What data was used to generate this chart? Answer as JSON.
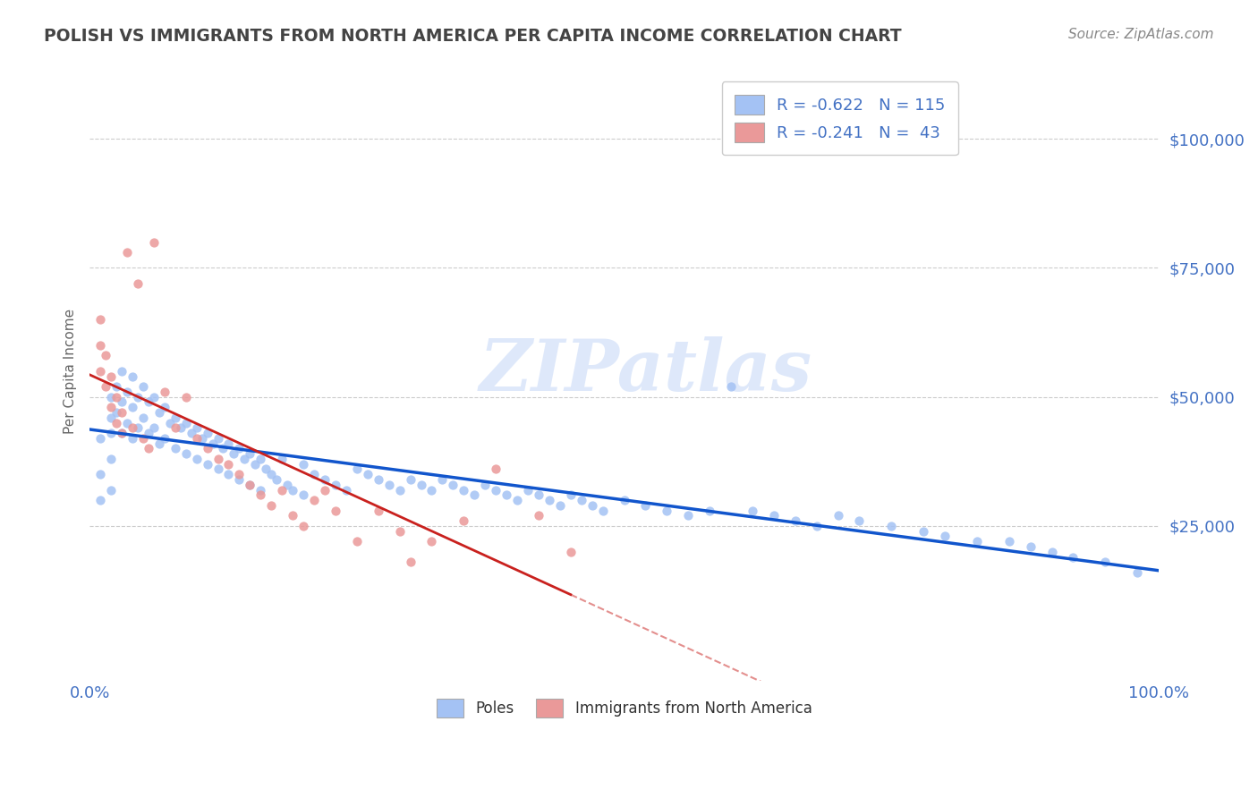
{
  "title": "POLISH VS IMMIGRANTS FROM NORTH AMERICA PER CAPITA INCOME CORRELATION CHART",
  "source": "Source: ZipAtlas.com",
  "ylabel": "Per Capita Income",
  "xlim": [
    0.0,
    1.0
  ],
  "ylim": [
    -5000,
    115000
  ],
  "bg_color": "#ffffff",
  "grid_color": "#cccccc",
  "title_color": "#555555",
  "axis_color": "#4472c4",
  "blue_color": "#a4c2f4",
  "pink_color": "#ea9999",
  "blue_line_color": "#1155cc",
  "pink_line_color": "#c9211e",
  "pink_dash_color": "#c9211e",
  "watermark_color": "#c9daf8",
  "blue_scatter_x": [
    0.01,
    0.01,
    0.01,
    0.02,
    0.02,
    0.02,
    0.02,
    0.02,
    0.025,
    0.025,
    0.03,
    0.03,
    0.03,
    0.035,
    0.035,
    0.04,
    0.04,
    0.04,
    0.045,
    0.045,
    0.05,
    0.05,
    0.055,
    0.055,
    0.06,
    0.06,
    0.065,
    0.065,
    0.07,
    0.07,
    0.075,
    0.08,
    0.08,
    0.085,
    0.09,
    0.09,
    0.095,
    0.1,
    0.1,
    0.105,
    0.11,
    0.11,
    0.115,
    0.12,
    0.12,
    0.125,
    0.13,
    0.13,
    0.135,
    0.14,
    0.14,
    0.145,
    0.15,
    0.15,
    0.155,
    0.16,
    0.16,
    0.165,
    0.17,
    0.175,
    0.18,
    0.185,
    0.19,
    0.2,
    0.2,
    0.21,
    0.22,
    0.23,
    0.24,
    0.25,
    0.26,
    0.27,
    0.28,
    0.29,
    0.3,
    0.31,
    0.32,
    0.33,
    0.34,
    0.35,
    0.36,
    0.37,
    0.38,
    0.39,
    0.4,
    0.41,
    0.42,
    0.43,
    0.44,
    0.45,
    0.46,
    0.47,
    0.48,
    0.5,
    0.52,
    0.54,
    0.56,
    0.58,
    0.6,
    0.62,
    0.64,
    0.66,
    0.68,
    0.7,
    0.72,
    0.75,
    0.78,
    0.8,
    0.83,
    0.86,
    0.88,
    0.9,
    0.92,
    0.95,
    0.98
  ],
  "blue_scatter_y": [
    35000,
    42000,
    30000,
    50000,
    46000,
    43000,
    38000,
    32000,
    52000,
    47000,
    55000,
    49000,
    43000,
    51000,
    45000,
    54000,
    48000,
    42000,
    50000,
    44000,
    52000,
    46000,
    49000,
    43000,
    50000,
    44000,
    47000,
    41000,
    48000,
    42000,
    45000,
    46000,
    40000,
    44000,
    45000,
    39000,
    43000,
    44000,
    38000,
    42000,
    43000,
    37000,
    41000,
    42000,
    36000,
    40000,
    41000,
    35000,
    39000,
    40000,
    34000,
    38000,
    39000,
    33000,
    37000,
    38000,
    32000,
    36000,
    35000,
    34000,
    38000,
    33000,
    32000,
    37000,
    31000,
    35000,
    34000,
    33000,
    32000,
    36000,
    35000,
    34000,
    33000,
    32000,
    34000,
    33000,
    32000,
    34000,
    33000,
    32000,
    31000,
    33000,
    32000,
    31000,
    30000,
    32000,
    31000,
    30000,
    29000,
    31000,
    30000,
    29000,
    28000,
    30000,
    29000,
    28000,
    27000,
    28000,
    52000,
    28000,
    27000,
    26000,
    25000,
    27000,
    26000,
    25000,
    24000,
    23000,
    22000,
    22000,
    21000,
    20000,
    19000,
    18000,
    16000
  ],
  "pink_scatter_x": [
    0.01,
    0.01,
    0.01,
    0.015,
    0.015,
    0.02,
    0.02,
    0.025,
    0.025,
    0.03,
    0.03,
    0.035,
    0.04,
    0.045,
    0.05,
    0.055,
    0.06,
    0.07,
    0.08,
    0.09,
    0.1,
    0.11,
    0.12,
    0.13,
    0.14,
    0.15,
    0.16,
    0.17,
    0.18,
    0.19,
    0.2,
    0.21,
    0.22,
    0.23,
    0.25,
    0.27,
    0.29,
    0.3,
    0.32,
    0.35,
    0.38,
    0.42,
    0.45
  ],
  "pink_scatter_y": [
    65000,
    60000,
    55000,
    58000,
    52000,
    54000,
    48000,
    50000,
    45000,
    47000,
    43000,
    78000,
    44000,
    72000,
    42000,
    40000,
    80000,
    51000,
    44000,
    50000,
    42000,
    40000,
    38000,
    37000,
    35000,
    33000,
    31000,
    29000,
    32000,
    27000,
    25000,
    30000,
    32000,
    28000,
    22000,
    28000,
    24000,
    18000,
    22000,
    26000,
    36000,
    27000,
    20000
  ]
}
